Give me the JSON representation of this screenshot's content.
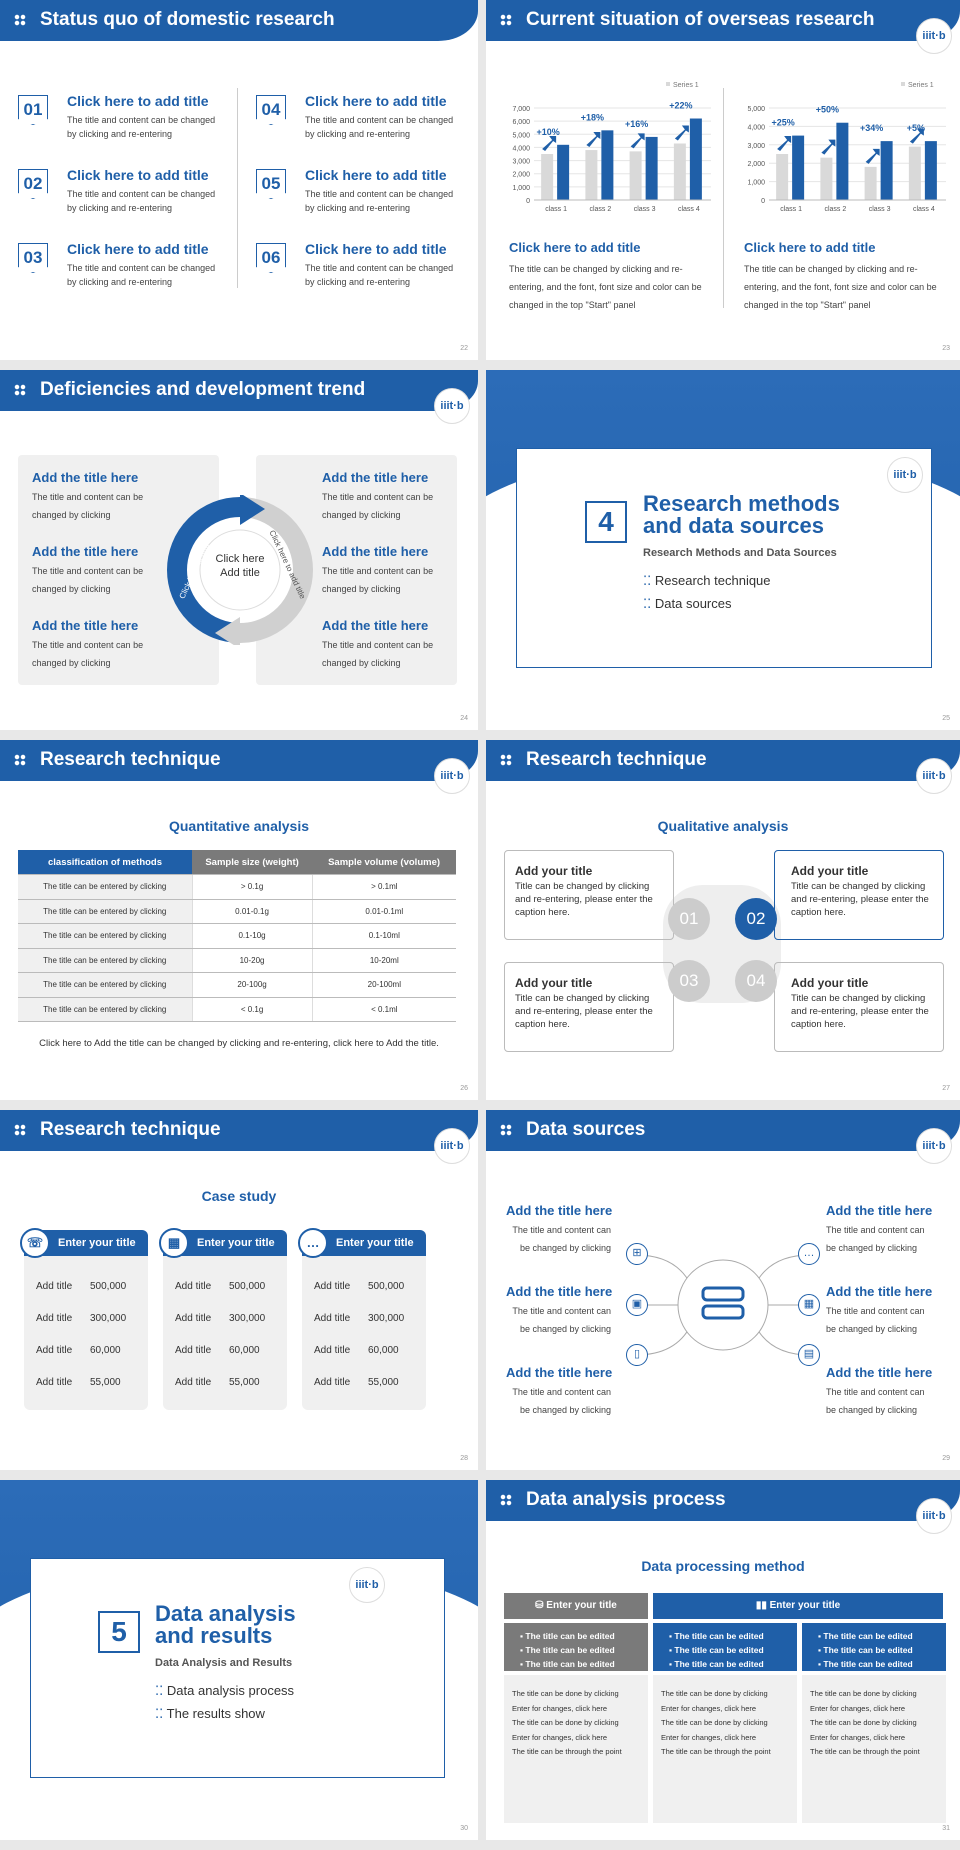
{
  "colors": {
    "primary": "#1f5fa8",
    "gray": "#d9d9d9",
    "dark_gray": "#7a7a7a"
  },
  "logo": {
    "text": "iiit·b"
  },
  "s22": {
    "title": "Status quo of domestic research",
    "page": "22",
    "items": [
      {
        "num": "01",
        "title": "Click here to add title",
        "body": "The title and content can be changed by clicking and re-entering"
      },
      {
        "num": "02",
        "title": "Click here to add title",
        "body": "The title and content can be changed by clicking and re-entering"
      },
      {
        "num": "03",
        "title": "Click here to add title",
        "body": "The title and content can be changed by clicking and re-entering"
      },
      {
        "num": "04",
        "title": "Click here to add title",
        "body": "The title and content can be changed by clicking and re-entering"
      },
      {
        "num": "05",
        "title": "Click here to add title",
        "body": "The title and content can be changed by clicking and re-entering"
      },
      {
        "num": "06",
        "title": "Click here to add title",
        "body": "The title and content can be changed by clicking and re-entering"
      }
    ]
  },
  "s23": {
    "title": "Current situation of overseas research",
    "page": "23",
    "blocks": [
      {
        "title": "Click here to add title",
        "body": "The title can be changed by clicking and re-entering, and the font, font size and color can be changed in the top \"Start\" panel"
      },
      {
        "title": "Click here to add title",
        "body": "The title can be changed by clicking and re-entering, and the font, font size and color can be changed in the top \"Start\" panel"
      }
    ]
  },
  "chart_data": [
    {
      "type": "bar",
      "categories": [
        "class 1",
        "class 2",
        "class 3",
        "class 4"
      ],
      "legend": "Series 1",
      "legend_position": "top-right",
      "ylim": [
        0,
        7000
      ],
      "yticks": [
        "0",
        "1,000",
        "2,000",
        "3,000",
        "4,000",
        "5,000",
        "6,000",
        "7,000"
      ],
      "series": [
        {
          "name": "Series 1",
          "values": [
            3500,
            3800,
            3700,
            4300
          ]
        },
        {
          "values": [
            4200,
            5300,
            4800,
            6200
          ]
        }
      ],
      "annotations": [
        "+10%",
        "+18%",
        "+16%",
        "+22%"
      ]
    },
    {
      "type": "bar",
      "categories": [
        "class 1",
        "class 2",
        "class 3",
        "class 4"
      ],
      "legend": "Series 1",
      "legend_position": "top-right",
      "ylim": [
        0,
        5000
      ],
      "yticks": [
        "0",
        "1,000",
        "2,000",
        "3,000",
        "4,000",
        "5,000"
      ],
      "series": [
        {
          "name": "Series 1",
          "values": [
            2500,
            2300,
            1800,
            2900
          ]
        },
        {
          "values": [
            3500,
            4200,
            3200,
            3200
          ]
        }
      ],
      "annotations": [
        "+25%",
        "+50%",
        "+34%",
        "+5%"
      ]
    }
  ],
  "s24": {
    "title": "Deficiencies and development trend",
    "page": "24",
    "center": "Click here Add title",
    "arc_left": "Click here to add title",
    "arc_right": "Click here to add title",
    "items": [
      {
        "title": "Add the title here",
        "body": "The title and content can be changed by clicking"
      },
      {
        "title": "Add the title here",
        "body": "The title and content can be changed by clicking"
      },
      {
        "title": "Add the title here",
        "body": "The title and content can be changed by clicking"
      },
      {
        "title": "Add the title here",
        "body": "The title and content can be changed by clicking"
      },
      {
        "title": "Add the title here",
        "body": "The title and content can be changed by clicking"
      },
      {
        "title": "Add the title here",
        "body": "The title and content can be changed by clicking"
      }
    ]
  },
  "s25": {
    "page": "25",
    "num": "4",
    "title": "Research methods and data sources",
    "subtitle": "Research Methods and Data Sources",
    "bullets": [
      "Research technique",
      "Data sources"
    ]
  },
  "s26": {
    "title": "Research technique",
    "page": "26",
    "heading": "Quantitative analysis",
    "columns": [
      "classification of methods",
      "Sample size (weight)",
      "Sample volume (volume)"
    ],
    "rows": [
      [
        "The title can be entered by clicking",
        "> 0.1g",
        "> 0.1ml"
      ],
      [
        "The title can be entered by clicking",
        "0.01-0.1g",
        "0.01-0.1ml"
      ],
      [
        "The title can be entered by clicking",
        "0.1-10g",
        "0.1-10ml"
      ],
      [
        "The title can be entered by clicking",
        "10-20g",
        "10-20ml"
      ],
      [
        "The title can be entered by clicking",
        "20-100g",
        "20-100ml"
      ],
      [
        "The title can be entered by clicking",
        "< 0.1g",
        "< 0.1ml"
      ]
    ],
    "footer": "Click here to Add the title can be changed by clicking and re-entering, click here to Add the title."
  },
  "s27": {
    "title": "Research technique",
    "page": "27",
    "heading": "Qualitative analysis",
    "items": [
      {
        "num": "01",
        "title": "Add your title",
        "body": "Title can be changed by clicking and re-entering, please enter the caption here."
      },
      {
        "num": "02",
        "title": "Add your title",
        "body": "Title can be changed by clicking and re-entering, please enter the caption here."
      },
      {
        "num": "03",
        "title": "Add your title",
        "body": "Title can be changed by clicking and re-entering, please enter the caption here."
      },
      {
        "num": "04",
        "title": "Add your title",
        "body": "Title can be changed by clicking and re-entering, please enter the caption here."
      }
    ]
  },
  "s28": {
    "title": "Research technique",
    "page": "28",
    "heading": "Case study",
    "cards": [
      {
        "title": "Enter your title",
        "rows": [
          [
            "Add title",
            "500,000"
          ],
          [
            "Add title",
            "300,000"
          ],
          [
            "Add title",
            "60,000"
          ],
          [
            "Add title",
            "55,000"
          ]
        ]
      },
      {
        "title": "Enter your title",
        "rows": [
          [
            "Add title",
            "500,000"
          ],
          [
            "Add title",
            "300,000"
          ],
          [
            "Add title",
            "60,000"
          ],
          [
            "Add title",
            "55,000"
          ]
        ]
      },
      {
        "title": "Enter your title",
        "rows": [
          [
            "Add title",
            "500,000"
          ],
          [
            "Add title",
            "300,000"
          ],
          [
            "Add title",
            "60,000"
          ],
          [
            "Add title",
            "55,000"
          ]
        ]
      }
    ]
  },
  "s29": {
    "title": "Data sources",
    "page": "29",
    "items": [
      {
        "title": "Add the title here",
        "body": "The title and content can be changed by clicking"
      },
      {
        "title": "Add the title here",
        "body": "The title and content can be changed by clicking"
      },
      {
        "title": "Add the title here",
        "body": "The title and content can be changed by clicking"
      },
      {
        "title": "Add the title here",
        "body": "The title and content can be changed by clicking"
      },
      {
        "title": "Add the title here",
        "body": "The title and content can be changed by clicking"
      },
      {
        "title": "Add the title here",
        "body": "The title and content can be changed by clicking"
      }
    ]
  },
  "s30": {
    "page": "30",
    "num": "5",
    "title": "Data analysis and results",
    "subtitle": "Data Analysis and Results",
    "bullets": [
      "Data analysis process",
      "The results show"
    ]
  },
  "s31": {
    "title": "Data analysis process",
    "page": "31",
    "heading": "Data processing method",
    "bar_left": "Enter your title",
    "bar_right": "Enter your title",
    "edited": "The title can be edited",
    "lists": [
      [
        "The title can be done by clicking",
        "Enter for changes, click here",
        "The title can be done by clicking",
        "Enter for changes, click here",
        "The title can be through the point"
      ],
      [
        "The title can be done by clicking",
        "Enter for changes, click here",
        "The title can be done by clicking",
        "Enter for changes, click here",
        "The title can be through the point"
      ],
      [
        "The title can be done by clicking",
        "Enter for changes, click here",
        "The title can be done by clicking",
        "Enter for changes, click here",
        "The title can be through the point"
      ]
    ]
  }
}
